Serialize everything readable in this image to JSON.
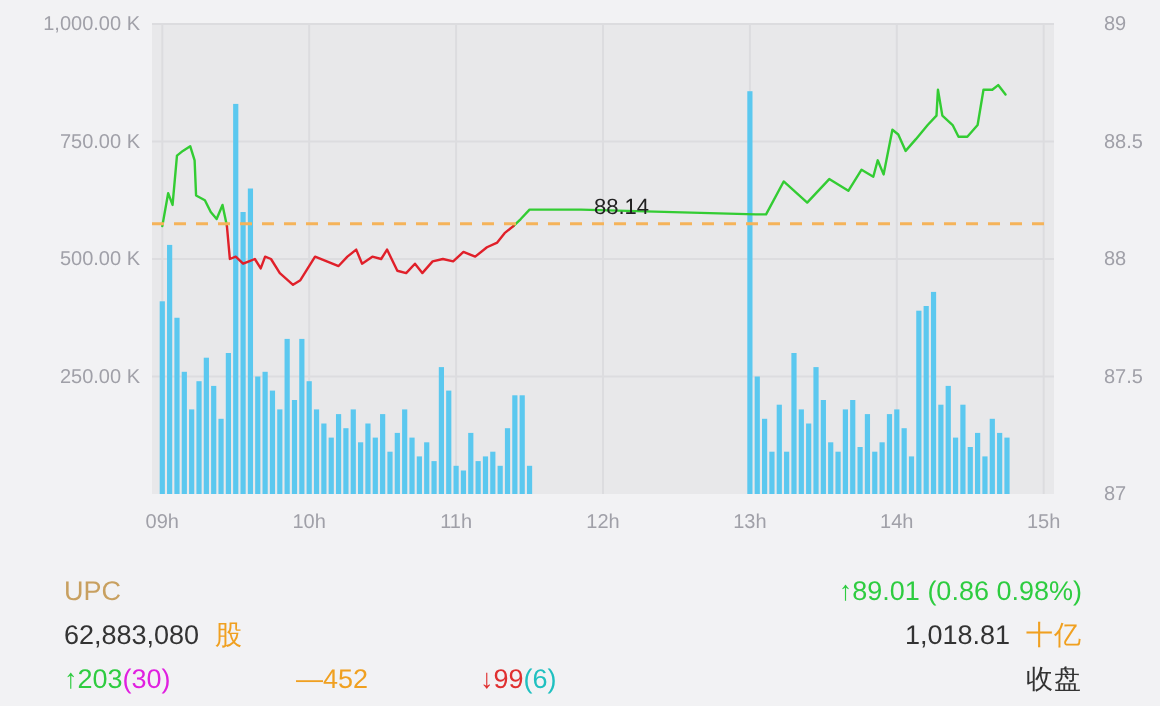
{
  "chart_data": {
    "type": "line",
    "xlim": [
      8.93,
      15.07
    ],
    "xticks": [
      {
        "value": 9,
        "label": "09h"
      },
      {
        "value": 10,
        "label": "10h"
      },
      {
        "value": 11,
        "label": "11h"
      },
      {
        "value": 12,
        "label": "12h"
      },
      {
        "value": 13,
        "label": "13h"
      },
      {
        "value": 14,
        "label": "14h"
      },
      {
        "value": 15,
        "label": "15h"
      }
    ],
    "ylim": [
      0,
      1000
    ],
    "yticks": [
      {
        "value": 250,
        "label": "250.00 K"
      },
      {
        "value": 500,
        "label": "500.00 K"
      },
      {
        "value": 750,
        "label": "750.00 K"
      },
      {
        "value": 1000,
        "label": "1,000.00 K"
      }
    ],
    "y2lim": [
      87,
      89
    ],
    "y2ticks": [
      87,
      87.5,
      88,
      88.5,
      89
    ],
    "grid": true,
    "series": [
      {
        "type": "bar",
        "color": "#5bc8ef",
        "x": [
          9,
          9.05,
          9.1,
          9.15,
          9.2,
          9.25,
          9.3,
          9.35,
          9.4,
          9.45,
          9.5,
          9.55,
          9.6,
          9.65,
          9.7,
          9.75,
          9.8,
          9.85,
          9.9,
          9.95,
          10,
          10.05,
          10.1,
          10.15,
          10.2,
          10.25,
          10.3,
          10.35,
          10.4,
          10.45,
          10.5,
          10.55,
          10.6,
          10.65,
          10.7,
          10.75,
          10.8,
          10.85,
          10.9,
          10.95,
          11,
          11.05,
          11.1,
          11.15,
          11.2,
          11.25,
          11.3,
          11.35,
          11.4,
          11.45,
          11.5,
          13,
          13.05,
          13.1,
          13.15,
          13.2,
          13.25,
          13.3,
          13.35,
          13.4,
          13.45,
          13.5,
          13.55,
          13.6,
          13.65,
          13.7,
          13.75,
          13.8,
          13.85,
          13.9,
          13.95,
          14,
          14.05,
          14.1,
          14.15,
          14.2,
          14.25,
          14.3,
          14.35,
          14.4,
          14.45,
          14.5,
          14.55,
          14.6,
          14.65,
          14.7,
          14.75
        ],
        "values": [
          410,
          530,
          375,
          260,
          180,
          240,
          290,
          230,
          160,
          300,
          830,
          600,
          650,
          250,
          260,
          220,
          180,
          330,
          200,
          330,
          240,
          180,
          150,
          120,
          170,
          140,
          180,
          110,
          150,
          120,
          170,
          90,
          130,
          180,
          120,
          80,
          110,
          70,
          270,
          220,
          60,
          50,
          130,
          70,
          80,
          90,
          60,
          140,
          210,
          210,
          60,
          857,
          250,
          160,
          90,
          190,
          90,
          300,
          180,
          150,
          270,
          200,
          110,
          90,
          180,
          200,
          100,
          170,
          90,
          110,
          170,
          180,
          140,
          80,
          390,
          400,
          430,
          190,
          230,
          120,
          190,
          100,
          130,
          80,
          160,
          130,
          120
        ]
      },
      {
        "axis": "y2",
        "color": "#33cc33",
        "x": [
          9,
          9.04,
          9.07,
          9.1,
          9.14,
          9.19,
          9.22,
          9.23,
          9.29,
          9.33,
          9.37,
          9.41,
          9.44,
          10,
          11.39,
          11.44,
          11.5,
          11.85,
          13.04,
          13.11,
          13.23,
          13.39,
          13.54,
          13.67,
          13.76,
          13.84,
          13.87,
          13.91,
          13.97,
          14.01,
          14.06,
          14.13,
          14.21,
          14.27,
          14.28,
          14.31,
          14.38,
          14.42,
          14.48,
          14.55,
          14.59,
          14.65,
          14.69,
          14.74
        ],
        "values": [
          88.14,
          88.28,
          88.23,
          88.44,
          88.46,
          88.48,
          88.42,
          88.27,
          88.25,
          88.2,
          88.17,
          88.23,
          88.14,
          null,
          88.14,
          88.17,
          88.21,
          88.21,
          88.19,
          88.19,
          88.33,
          88.24,
          88.34,
          88.29,
          88.38,
          88.35,
          88.42,
          88.36,
          88.55,
          88.53,
          88.46,
          88.51,
          88.57,
          88.61,
          88.72,
          88.61,
          88.57,
          88.52,
          88.52,
          88.57,
          88.72,
          88.72,
          88.74,
          88.7
        ]
      },
      {
        "axis": "y2",
        "color": "#e0202a",
        "x": [
          9.44,
          9.46,
          9.5,
          9.55,
          9.59,
          9.63,
          9.67,
          9.7,
          9.74,
          9.8,
          9.89,
          9.94,
          10.04,
          10.12,
          10.2,
          10.26,
          10.32,
          10.36,
          10.43,
          10.49,
          10.53,
          10.6,
          10.66,
          10.72,
          10.77,
          10.84,
          10.91,
          10.98,
          11.05,
          11.13,
          11.21,
          11.28,
          11.33,
          11.39
        ],
        "values": [
          88.14,
          88,
          88.01,
          87.98,
          87.99,
          88,
          87.96,
          88.01,
          88,
          87.94,
          87.89,
          87.91,
          88.01,
          87.99,
          87.97,
          88.01,
          88.04,
          87.98,
          88.01,
          88,
          88.04,
          87.95,
          87.94,
          87.98,
          87.94,
          87.99,
          88,
          87.99,
          88.03,
          88.01,
          88.05,
          88.07,
          88.11,
          88.14
        ]
      }
    ],
    "ref_lines": [
      {
        "axis": "y2",
        "value": 88.15,
        "color": "#f5b35a",
        "line_style": "dashed"
      }
    ],
    "annotations": [
      "88.14",
      "UPC",
      "↑89.01 (0.86 0.98%)",
      "62,883,080",
      "股",
      "1,018.81",
      "十亿",
      "↑203",
      "(30)",
      "—452",
      "↓99",
      "(6)",
      "收盘"
    ]
  }
}
